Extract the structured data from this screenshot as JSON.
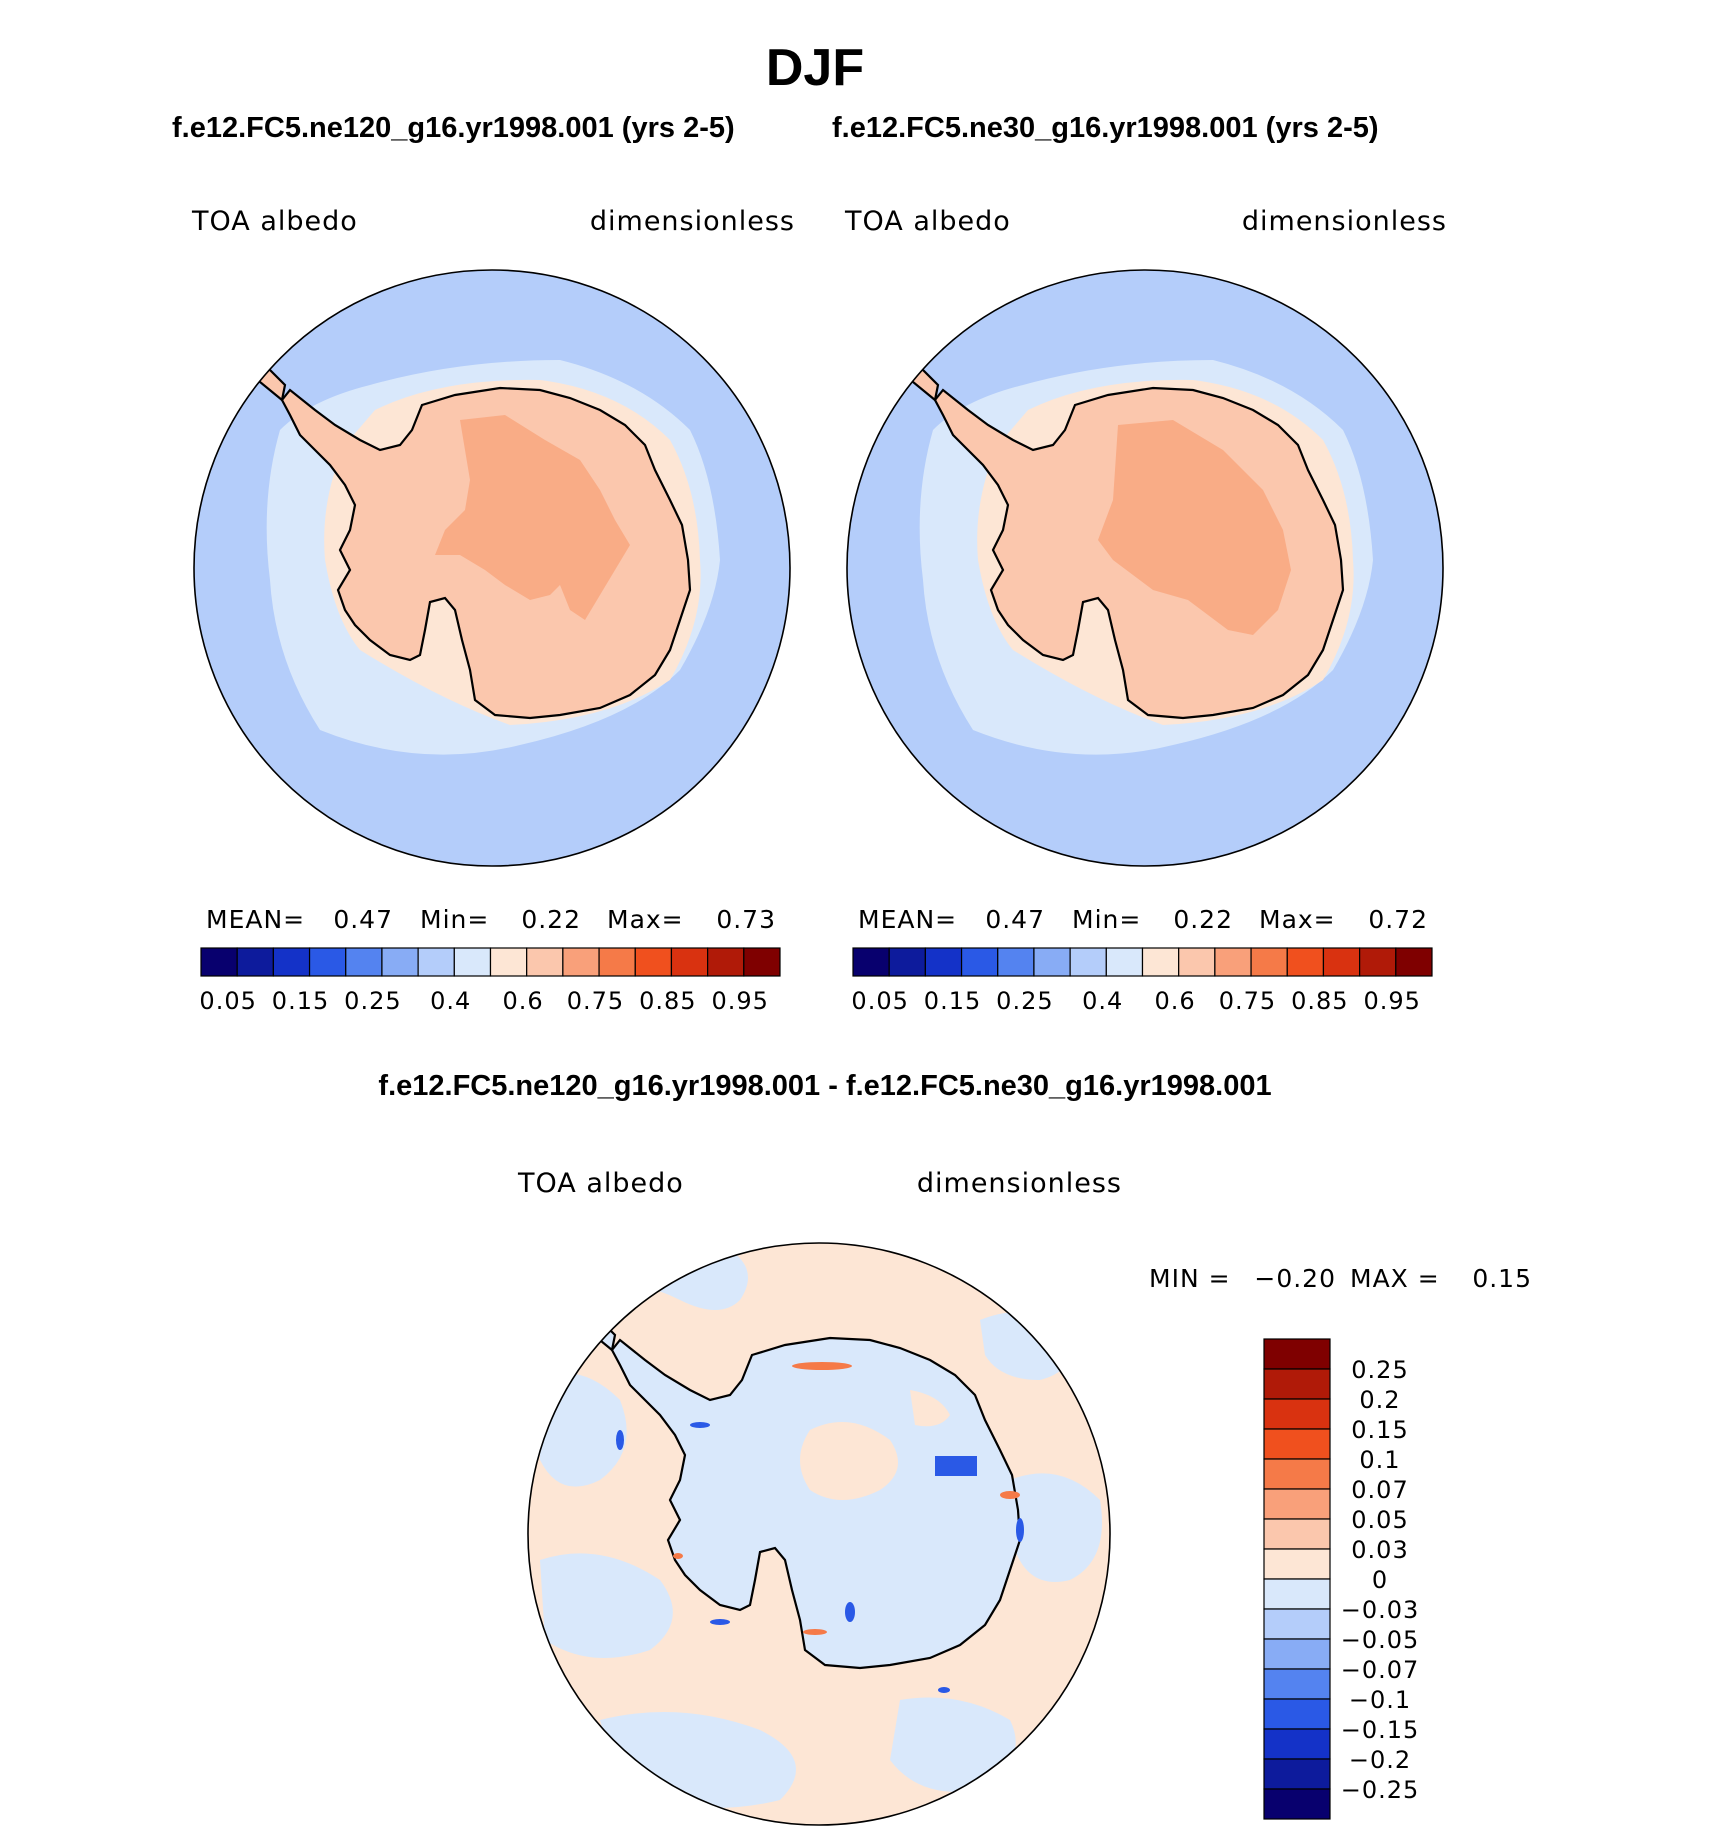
{
  "title": "DJF",
  "panels": [
    {
      "case_title": "f.e12.FC5.ne120_g16.yr1998.001 (yrs 2-5)",
      "left_label": "TOA albedo",
      "right_label": "dimensionless",
      "stats": {
        "mean_label": "MEAN=",
        "mean": "0.47",
        "min_label": "Min=",
        "min": "0.22",
        "max_label": "Max=",
        "max": "0.73"
      },
      "colorbar_ticks": [
        "0.05",
        "0.15",
        "0.25",
        "0.4",
        "0.6",
        "0.75",
        "0.85",
        "0.95"
      ]
    },
    {
      "case_title": "f.e12.FC5.ne30_g16.yr1998.001 (yrs 2-5)",
      "left_label": "TOA albedo",
      "right_label": "dimensionless",
      "stats": {
        "mean_label": "MEAN=",
        "mean": "0.47",
        "min_label": "Min=",
        "min": "0.22",
        "max_label": "Max=",
        "max": "0.72"
      },
      "colorbar_ticks": [
        "0.05",
        "0.15",
        "0.25",
        "0.4",
        "0.6",
        "0.75",
        "0.85",
        "0.95"
      ]
    }
  ],
  "difference": {
    "title": "f.e12.FC5.ne120_g16.yr1998.001 - f.e12.FC5.ne30_g16.yr1998.001",
    "left_label": "TOA albedo",
    "right_label": "dimensionless",
    "min_label": "MIN =",
    "min": "−0.20",
    "max_label": "MAX =",
    "max": "0.15",
    "colorbar_labels": [
      "0.25",
      "0.2",
      "0.15",
      "0.1",
      "0.07",
      "0.05",
      "0.03",
      "0",
      "−0.03",
      "−0.05",
      "−0.07",
      "−0.1",
      "−0.15",
      "−0.2",
      "−0.25"
    ]
  },
  "colors": {
    "abs_scale": [
      "#08006e",
      "#0d1b9c",
      "#1432c8",
      "#2a59e6",
      "#5483f0",
      "#88acf5",
      "#b4cdfa",
      "#d9e8fb",
      "#fde6d5",
      "#fbc7ad",
      "#f9a07a",
      "#f57a48",
      "#f0501e",
      "#d93210",
      "#b01a08",
      "#7f0000"
    ],
    "diff_scale": [
      "#7f0000",
      "#b01a08",
      "#d93210",
      "#f0501e",
      "#f57a48",
      "#f9a07a",
      "#fbc7ad",
      "#fde6d5",
      "#d9e8fb",
      "#b4cdfa",
      "#88acf5",
      "#5483f0",
      "#2a59e6",
      "#1432c8",
      "#0d1b9c",
      "#08006e"
    ],
    "ocean": "#b4cdfa",
    "sea_ice": "#d9e8fb",
    "ice_sheet": "#fbc7ad",
    "ice_interior": "#f9ac86",
    "diff_positive": "#fde6d5",
    "diff_negative": "#d9e8fb"
  }
}
